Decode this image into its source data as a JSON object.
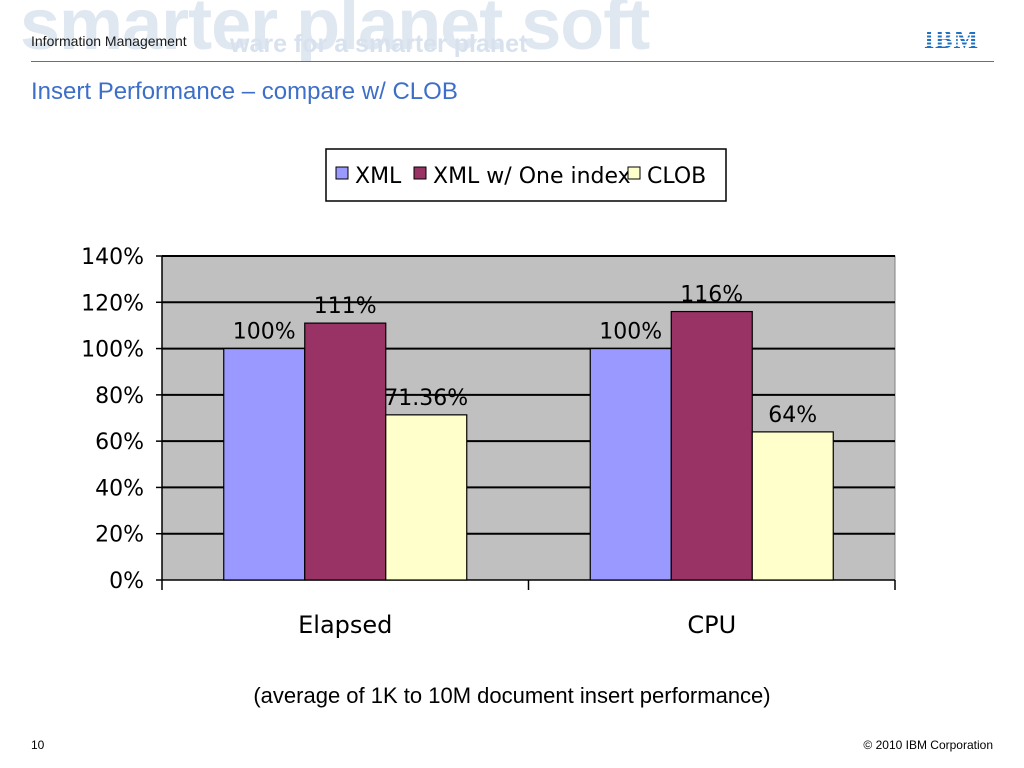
{
  "header": {
    "department": "Information Management",
    "logo": "IBM",
    "banner_text": "smarter planet soft",
    "banner_subtext": "ware for a smarter planet"
  },
  "slide": {
    "title": "Insert Performance – compare w/ CLOB",
    "caption": "(average of 1K to 10M document insert performance)",
    "page_number": "10",
    "copyright": "© 2010 IBM Corporation"
  },
  "chart_data": {
    "type": "bar",
    "categories": [
      "Elapsed",
      "CPU"
    ],
    "series": [
      {
        "name": "XML",
        "values": [
          100,
          100
        ],
        "labels": [
          "100%",
          "100%"
        ],
        "color": "#9999ff"
      },
      {
        "name": "XML w/ One index",
        "values": [
          111,
          116
        ],
        "labels": [
          "111%",
          "116%"
        ],
        "color": "#993366"
      },
      {
        "name": "CLOB",
        "values": [
          71.36,
          64
        ],
        "labels": [
          "71.36%",
          "64%"
        ],
        "color": "#ffffcc"
      }
    ],
    "ylim": [
      0,
      140
    ],
    "yticks": [
      "0%",
      "20%",
      "40%",
      "60%",
      "80%",
      "100%",
      "120%",
      "140%"
    ],
    "grid": true,
    "plot_background": "#c0c0c0",
    "legend_position": "top"
  }
}
